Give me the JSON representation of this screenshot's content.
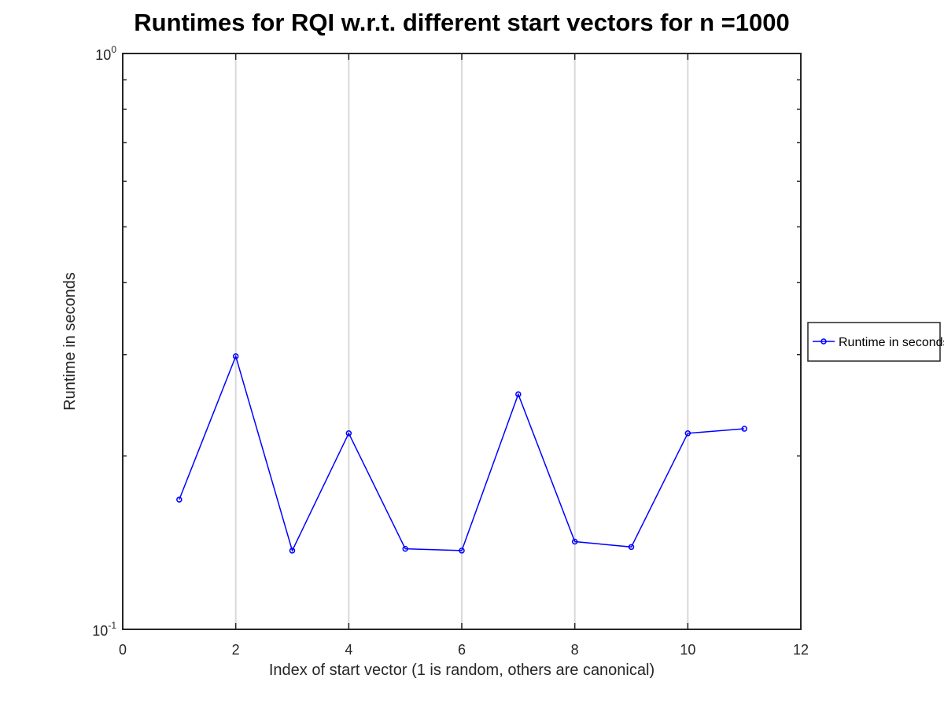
{
  "chart_data": {
    "type": "line",
    "title": "Runtimes for RQI w.r.t. different start vectors for n =1000",
    "xlabel": "Index of start vector (1 is random, others are canonical)",
    "ylabel": "Runtime in seconds",
    "xlim": [
      0,
      12
    ],
    "ylim": [
      0.1,
      1
    ],
    "yscale": "log",
    "xticks": [
      0,
      2,
      4,
      6,
      8,
      10,
      12
    ],
    "xtick_labels": [
      "0",
      "2",
      "4",
      "6",
      "8",
      "10",
      "12"
    ],
    "yticks": [
      {
        "value": 0.1,
        "base": "10",
        "exp": "-1"
      },
      {
        "value": 1,
        "base": "10",
        "exp": "0"
      }
    ],
    "grid": "x-major",
    "legend_position": "outside-right",
    "series": [
      {
        "name": "Runtime in seconds",
        "color": "#0000ff",
        "marker": "circle",
        "x": [
          1,
          2,
          3,
          4,
          5,
          6,
          7,
          8,
          9,
          10,
          11
        ],
        "y": [
          0.168,
          0.298,
          0.137,
          0.219,
          0.138,
          0.137,
          0.256,
          0.142,
          0.139,
          0.219,
          0.223
        ]
      }
    ]
  }
}
